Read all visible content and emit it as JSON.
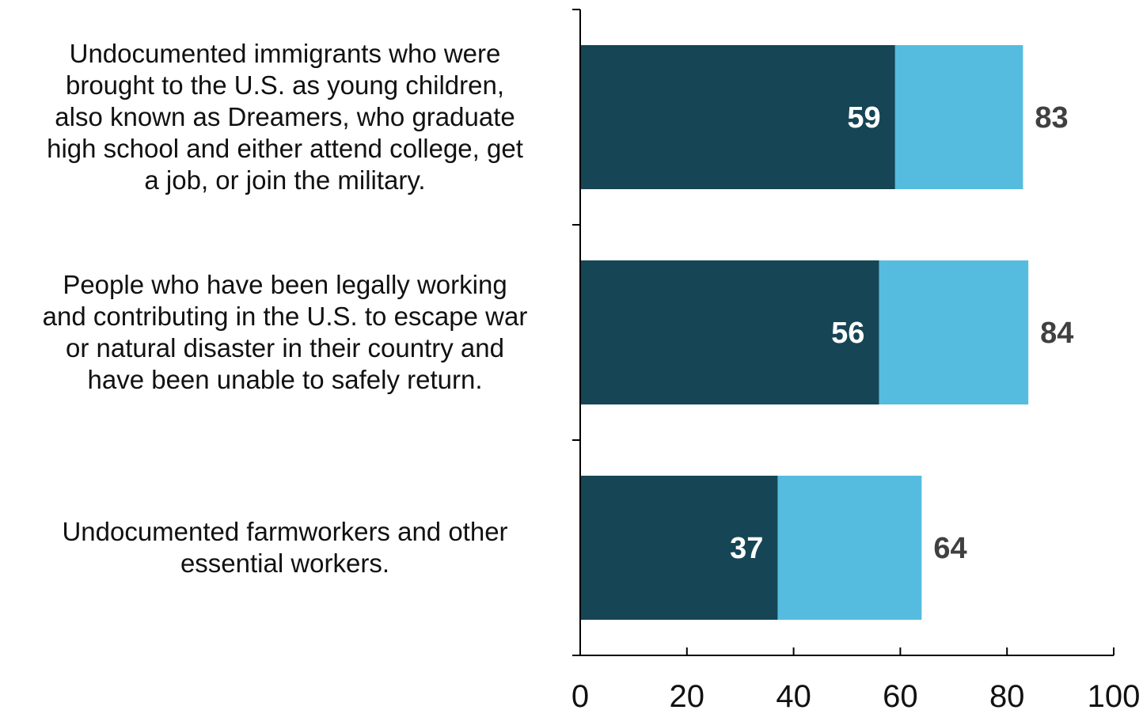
{
  "chart_data": {
    "type": "bar",
    "orientation": "horizontal",
    "categories": [
      "Undocumented immigrants who were brought to the U.S. as young children, also known as Dreamers, who graduate high school and either attend college, get a job, or join the military.",
      "People who have been legally working and contributing in the U.S. to escape war or natural disaster in their country and have been unable to safely return.",
      "Undocumented farmworkers and other essential workers."
    ],
    "category_lines": [
      [
        "Undocumented immigrants who were",
        "brought to the U.S. as young children,",
        "also known as Dreamers, who graduate",
        "high school and either attend college, get",
        "a job, or join the military."
      ],
      [
        "People who have been legally working",
        "and contributing in the U.S. to escape war",
        "or natural disaster in their country and",
        "have been unable to safely return."
      ],
      [
        "Undocumented farmworkers and other",
        "essential workers."
      ]
    ],
    "series": [
      {
        "values": [
          59,
          56,
          37
        ],
        "color": "#164555"
      },
      {
        "values": [
          83,
          84,
          64
        ],
        "color": "#56bcdf"
      }
    ],
    "xlim": [
      0,
      100
    ],
    "xticks": [
      "0",
      "20",
      "40",
      "60",
      "80",
      "100"
    ],
    "grid": false,
    "title": "",
    "xlabel": "",
    "ylabel": ""
  }
}
